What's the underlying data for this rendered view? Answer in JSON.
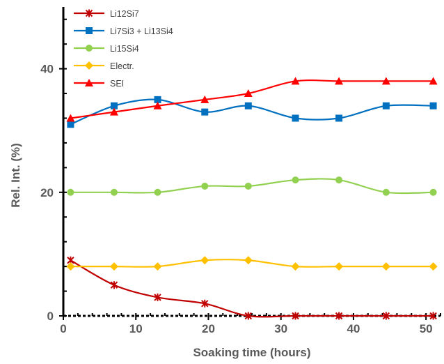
{
  "chart_data": {
    "type": "line",
    "xlabel": "Soaking time (hours)",
    "ylabel": "Rel. Int. (%)",
    "xlim": [
      0,
      52
    ],
    "ylim": [
      0,
      50
    ],
    "x_ticks": [
      0,
      10,
      20,
      30,
      40,
      50
    ],
    "y_ticks": [
      0,
      20,
      40
    ],
    "legend_position": "top-left",
    "x": [
      1,
      7,
      13,
      19.5,
      25.5,
      32,
      38,
      44.5,
      51
    ],
    "series": [
      {
        "name": "Li12Si7",
        "color": "#C00000",
        "marker": "star",
        "values": [
          9,
          5,
          3,
          2,
          0,
          0,
          0,
          0,
          0
        ]
      },
      {
        "name": "Li7Si3 + Li13Si4",
        "color": "#0070C0",
        "marker": "square",
        "values": [
          31,
          34,
          35,
          33,
          34,
          32,
          32,
          34,
          34
        ]
      },
      {
        "name": "Li15Si4",
        "color": "#92D050",
        "marker": "circle",
        "values": [
          20,
          20,
          20,
          21,
          21,
          22,
          22,
          20,
          20
        ]
      },
      {
        "name": "Electr.",
        "color": "#FFC000",
        "marker": "diamond",
        "values": [
          8,
          8,
          8,
          9,
          9,
          8,
          8,
          8,
          8
        ]
      },
      {
        "name": "SEI",
        "color": "#FF0000",
        "marker": "triangle",
        "values": [
          32,
          33,
          34,
          35,
          36,
          38,
          38,
          38,
          38
        ]
      }
    ]
  }
}
